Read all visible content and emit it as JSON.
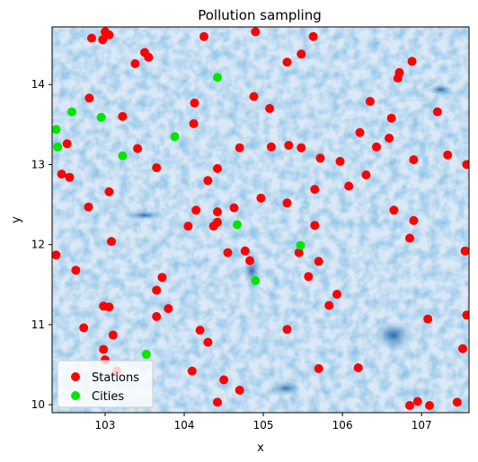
{
  "chart_data": {
    "type": "scatter",
    "title": "Pollution sampling",
    "xlabel": "x",
    "ylabel": "y",
    "xlim": [
      102.33,
      107.6
    ],
    "ylim": [
      9.9,
      14.72
    ],
    "xticks": [
      103,
      104,
      105,
      106,
      107
    ],
    "yticks": [
      10,
      11,
      12,
      13,
      14
    ],
    "grid": false,
    "legend_position": "lower left",
    "background": "blue-white heatmap of pollution intensity",
    "series": [
      {
        "name": "Stations",
        "color": "#ff0000",
        "points": [
          [
            102.83,
            14.58
          ],
          [
            102.97,
            14.56
          ],
          [
            103.0,
            14.66
          ],
          [
            103.05,
            14.62
          ],
          [
            103.5,
            14.4
          ],
          [
            103.55,
            14.34
          ],
          [
            103.38,
            14.26
          ],
          [
            104.25,
            14.6
          ],
          [
            104.9,
            14.66
          ],
          [
            105.3,
            14.28
          ],
          [
            105.48,
            14.38
          ],
          [
            105.63,
            14.6
          ],
          [
            102.8,
            13.83
          ],
          [
            103.22,
            13.6
          ],
          [
            104.13,
            13.77
          ],
          [
            104.88,
            13.85
          ],
          [
            106.72,
            14.15
          ],
          [
            106.7,
            14.08
          ],
          [
            106.88,
            14.29
          ],
          [
            106.35,
            13.79
          ],
          [
            105.08,
            13.7
          ],
          [
            104.12,
            13.51
          ],
          [
            106.62,
            13.58
          ],
          [
            107.2,
            13.66
          ],
          [
            106.22,
            13.4
          ],
          [
            106.59,
            13.33
          ],
          [
            102.52,
            13.26
          ],
          [
            103.41,
            13.2
          ],
          [
            104.7,
            13.21
          ],
          [
            105.1,
            13.22
          ],
          [
            105.32,
            13.24
          ],
          [
            105.48,
            13.21
          ],
          [
            106.43,
            13.22
          ],
          [
            107.33,
            13.12
          ],
          [
            105.72,
            13.08
          ],
          [
            105.97,
            13.04
          ],
          [
            106.9,
            13.06
          ],
          [
            107.57,
            13.0
          ],
          [
            102.45,
            12.88
          ],
          [
            102.55,
            12.84
          ],
          [
            103.65,
            12.96
          ],
          [
            104.42,
            12.95
          ],
          [
            104.3,
            12.8
          ],
          [
            106.3,
            12.87
          ],
          [
            106.08,
            12.73
          ],
          [
            105.65,
            12.69
          ],
          [
            103.05,
            12.66
          ],
          [
            102.79,
            12.47
          ],
          [
            104.15,
            12.43
          ],
          [
            104.42,
            12.41
          ],
          [
            104.63,
            12.46
          ],
          [
            104.97,
            12.58
          ],
          [
            105.3,
            12.52
          ],
          [
            106.65,
            12.43
          ],
          [
            104.42,
            12.28
          ],
          [
            104.05,
            12.23
          ],
          [
            104.37,
            12.23
          ],
          [
            106.9,
            12.3
          ],
          [
            105.65,
            12.24
          ],
          [
            103.08,
            12.04
          ],
          [
            102.38,
            11.87
          ],
          [
            104.55,
            11.9
          ],
          [
            104.77,
            11.92
          ],
          [
            104.83,
            11.8
          ],
          [
            105.45,
            11.9
          ],
          [
            105.7,
            11.79
          ],
          [
            106.85,
            12.08
          ],
          [
            107.55,
            11.92
          ],
          [
            102.63,
            11.68
          ],
          [
            103.72,
            11.59
          ],
          [
            103.65,
            11.43
          ],
          [
            105.57,
            11.6
          ],
          [
            105.93,
            11.38
          ],
          [
            105.83,
            11.24
          ],
          [
            102.98,
            11.23
          ],
          [
            103.05,
            11.22
          ],
          [
            103.8,
            11.2
          ],
          [
            103.65,
            11.1
          ],
          [
            107.57,
            11.12
          ],
          [
            107.08,
            11.07
          ],
          [
            102.73,
            10.96
          ],
          [
            104.2,
            10.93
          ],
          [
            105.3,
            10.94
          ],
          [
            103.1,
            10.87
          ],
          [
            104.3,
            10.78
          ],
          [
            102.98,
            10.69
          ],
          [
            103.0,
            10.56
          ],
          [
            107.52,
            10.7
          ],
          [
            103.15,
            10.42
          ],
          [
            104.1,
            10.42
          ],
          [
            105.7,
            10.45
          ],
          [
            106.2,
            10.46
          ],
          [
            104.5,
            10.31
          ],
          [
            104.7,
            10.18
          ],
          [
            104.42,
            10.03
          ],
          [
            106.85,
            9.99
          ],
          [
            106.95,
            10.04
          ],
          [
            107.1,
            9.99
          ],
          [
            107.45,
            10.03
          ]
        ]
      },
      {
        "name": "Cities",
        "color": "#00e600",
        "points": [
          [
            104.42,
            14.09
          ],
          [
            102.58,
            13.66
          ],
          [
            102.95,
            13.59
          ],
          [
            102.38,
            13.44
          ],
          [
            103.88,
            13.35
          ],
          [
            102.4,
            13.22
          ],
          [
            103.22,
            13.11
          ],
          [
            104.67,
            12.25
          ],
          [
            105.47,
            11.99
          ],
          [
            104.9,
            11.55
          ],
          [
            103.52,
            10.63
          ]
        ]
      }
    ]
  }
}
